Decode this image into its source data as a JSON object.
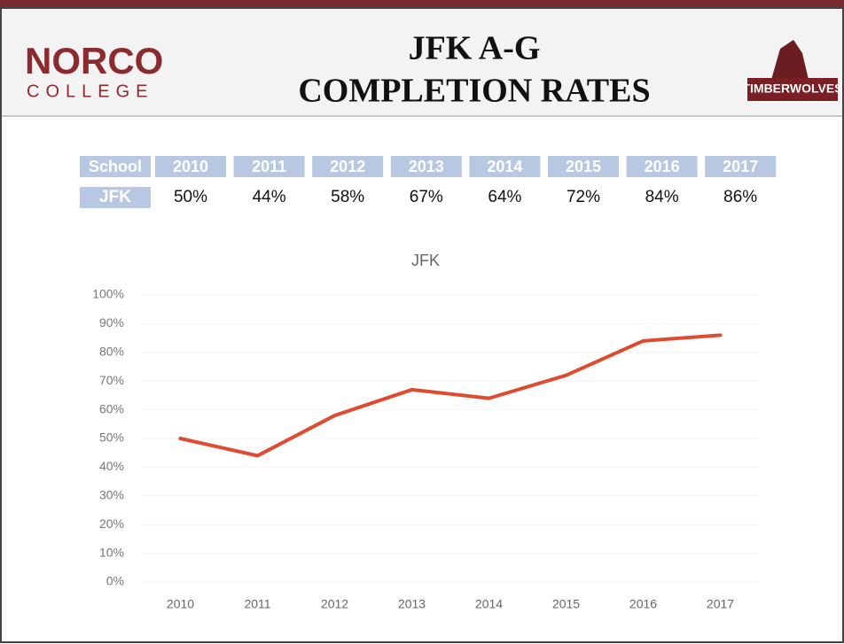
{
  "header": {
    "logo_top": "NORCO",
    "logo_bottom": "COLLEGE",
    "title_line1": "JFK A-G",
    "title_line2": "COMPLETION RATES",
    "badge": "TIMBERWOLVES"
  },
  "table": {
    "header": [
      "School",
      "2010",
      "2011",
      "2012",
      "2013",
      "2014",
      "2015",
      "2016",
      "2017"
    ],
    "rows": [
      [
        "JFK",
        "50%",
        "44%",
        "58%",
        "67%",
        "64%",
        "72%",
        "84%",
        "86%"
      ]
    ]
  },
  "chart_data": {
    "type": "line",
    "title": "JFK",
    "categories": [
      "2010",
      "2011",
      "2012",
      "2013",
      "2014",
      "2015",
      "2016",
      "2017"
    ],
    "series": [
      {
        "name": "JFK",
        "color": "#e04a2f",
        "values": [
          50,
          44,
          58,
          67,
          64,
          72,
          84,
          86
        ]
      }
    ],
    "ylim": [
      0,
      100
    ],
    "yticks": [
      {
        "value": 0,
        "label": "0%"
      },
      {
        "value": 10,
        "label": "10%"
      },
      {
        "value": 20,
        "label": "20%"
      },
      {
        "value": 30,
        "label": "30%"
      },
      {
        "value": 40,
        "label": "40%"
      },
      {
        "value": 50,
        "label": "50%"
      },
      {
        "value": 60,
        "label": "60%"
      },
      {
        "value": 70,
        "label": "70%"
      },
      {
        "value": 80,
        "label": "80%"
      },
      {
        "value": 90,
        "label": "90%"
      },
      {
        "value": 100,
        "label": "100%"
      }
    ],
    "grid": true
  }
}
